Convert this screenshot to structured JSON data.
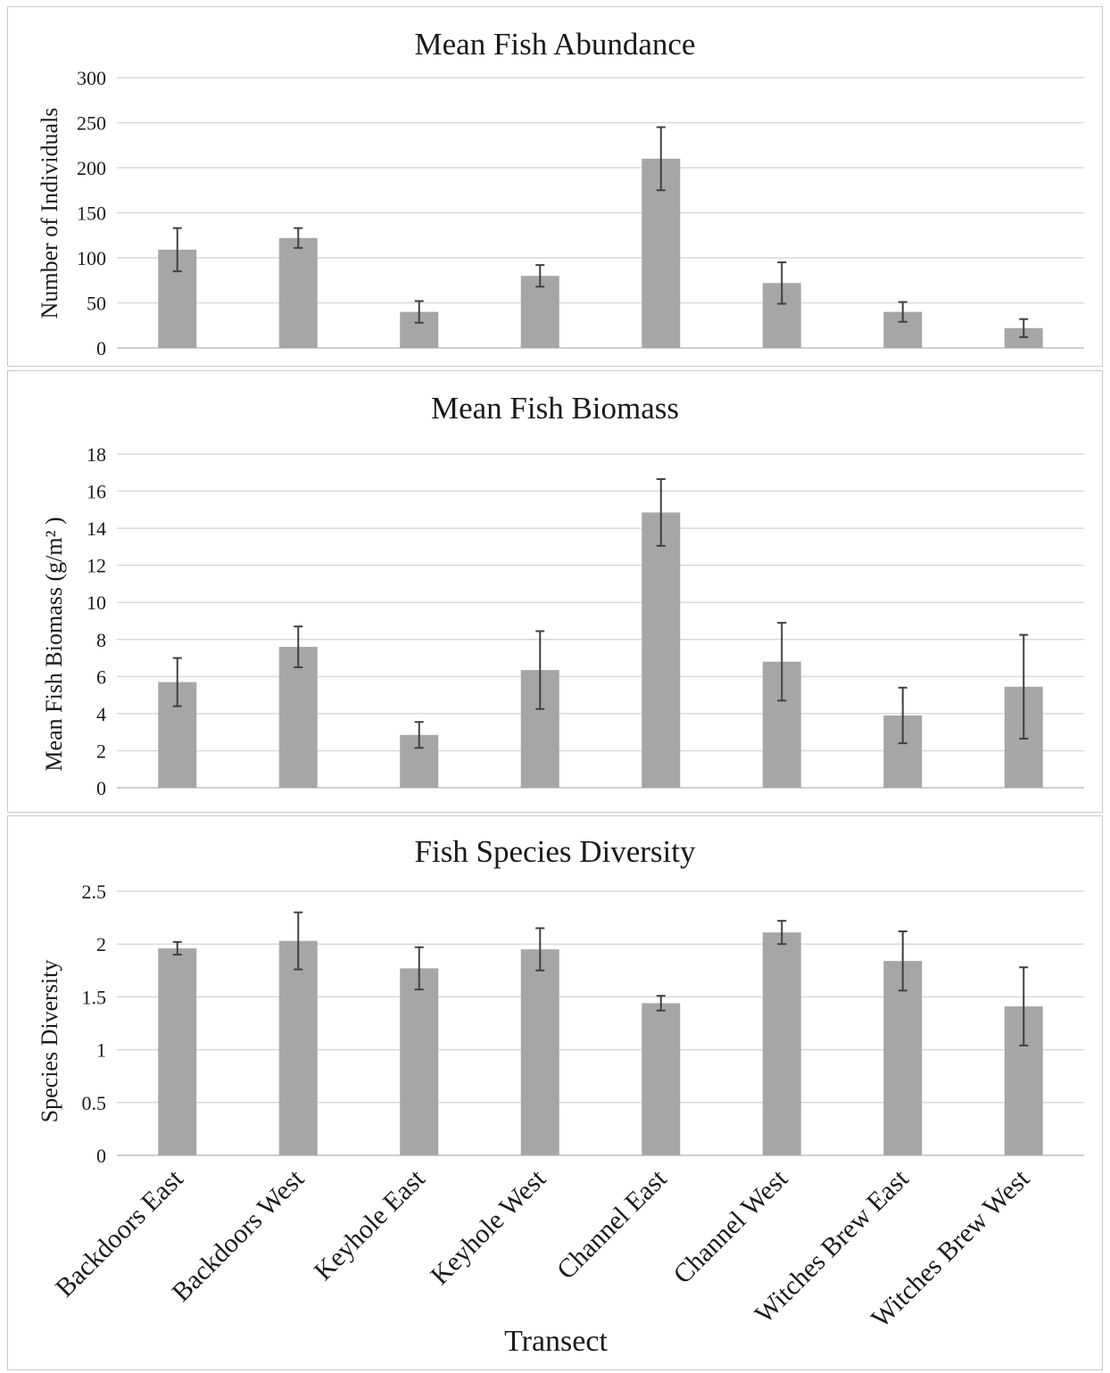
{
  "chart_data": [
    {
      "type": "bar",
      "title": "Mean Fish Abundance",
      "ylabel": "Number of Individuals",
      "xlabel": "",
      "categories": [
        "Backdoors East",
        "Backdoors West",
        "Keyhole East",
        "Keyhole West",
        "Channel East",
        "Channel West",
        "Witches Brew East",
        "Witches Brew West"
      ],
      "values": [
        109,
        122,
        40,
        80,
        210,
        72,
        40,
        22
      ],
      "error": [
        24,
        11,
        12,
        12,
        35,
        23,
        11,
        10
      ],
      "ylim": [
        0,
        300
      ],
      "yticks": [
        "0",
        "50",
        "100",
        "150",
        "200",
        "250",
        "300"
      ],
      "show_x_ticklabels": false,
      "grid": true,
      "bar_color": "#a6a6a6"
    },
    {
      "type": "bar",
      "title": "Mean Fish Biomass",
      "ylabel": "Mean Fish Biomass (g/m² )",
      "xlabel": "",
      "categories": [
        "Backdoors East",
        "Backdoors West",
        "Keyhole East",
        "Keyhole West",
        "Channel East",
        "Channel West",
        "Witches Brew East",
        "Witches Brew West"
      ],
      "values": [
        5.7,
        7.6,
        2.85,
        6.35,
        14.85,
        6.8,
        3.9,
        5.45
      ],
      "error": [
        1.3,
        1.1,
        0.7,
        2.1,
        1.8,
        2.1,
        1.5,
        2.8
      ],
      "ylim": [
        0,
        18
      ],
      "yticks": [
        "0",
        "2",
        "4",
        "6",
        "8",
        "10",
        "12",
        "14",
        "16",
        "18"
      ],
      "show_x_ticklabels": false,
      "grid": true,
      "bar_color": "#a6a6a6"
    },
    {
      "type": "bar",
      "title": "Fish Species Diversity",
      "ylabel": "Species Diversity",
      "xlabel": "Transect",
      "categories": [
        "Backdoors East",
        "Backdoors West",
        "Keyhole East",
        "Keyhole West",
        "Channel East",
        "Channel West",
        "Witches Brew East",
        "Witches Brew West"
      ],
      "values": [
        1.96,
        2.03,
        1.77,
        1.95,
        1.44,
        2.11,
        1.84,
        1.41
      ],
      "error": [
        0.06,
        0.27,
        0.2,
        0.2,
        0.07,
        0.11,
        0.28,
        0.37
      ],
      "ylim": [
        0,
        2.5
      ],
      "yticks": [
        "0",
        "0.5",
        "1",
        "1.5",
        "2",
        "2.5"
      ],
      "show_x_ticklabels": true,
      "grid": true,
      "bar_color": "#a6a6a6"
    }
  ]
}
